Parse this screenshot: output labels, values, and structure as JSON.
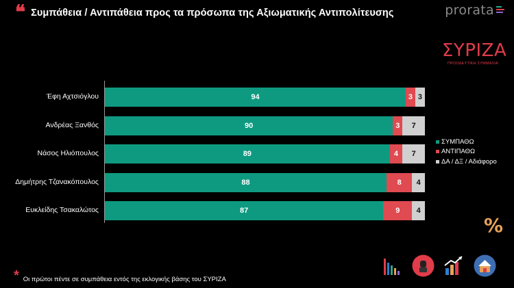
{
  "header": {
    "title": "Συμπάθεια / Αντιπάθεια προς τα πρόσωπα της Αξιωματικής Αντιπολίτευσης",
    "quote_glyph": "❝"
  },
  "brand": {
    "name": "prorata"
  },
  "party": {
    "name": "ΣΥΡΙΖΑ",
    "subtitle": "ΠΡΟΟΔΕΥΤΙΚΗ ΣΥΜΜΑΧΙΑ"
  },
  "colors": {
    "sympathy": "#0e9a80",
    "antipathy": "#e04a51",
    "neutral": "#d0d0d0",
    "accent": "#e03c4a"
  },
  "chart_data": {
    "type": "bar",
    "orientation": "horizontal",
    "stacked": true,
    "categories": [
      "Έφη Αχτσιόγλου",
      "Ανδρέας Ξανθός",
      "Νάσος Ηλιόπουλος",
      "Δημήτρης Τζανακόπουλος",
      "Ευκλείδης Τσακαλώτος"
    ],
    "series": [
      {
        "name": "ΣΥΜΠΑΘΩ",
        "values": [
          94,
          90,
          89,
          88,
          87
        ],
        "color": "#0e9a80"
      },
      {
        "name": "ΑΝΤΙΠΑΘΩ",
        "values": [
          3,
          3,
          4,
          8,
          9
        ],
        "color": "#e04a51"
      },
      {
        "name": "ΔΑ / ΔΞ / Αδιάφορο",
        "values": [
          3,
          7,
          7,
          4,
          4
        ],
        "color": "#d0d0d0"
      }
    ],
    "xlim": [
      0,
      100
    ],
    "legend_position": "right",
    "grid": false
  },
  "percent_symbol": "%",
  "footnote": {
    "marker": "*",
    "text": "Οι πρώτοι πέντε σε συμπάθεια εντός της εκλογικής βάσης του ΣΥΡΙΖΑ"
  },
  "icons": [
    "bar-chart-icon",
    "microphone-icon",
    "growth-chart-icon",
    "voting-house-icon"
  ]
}
